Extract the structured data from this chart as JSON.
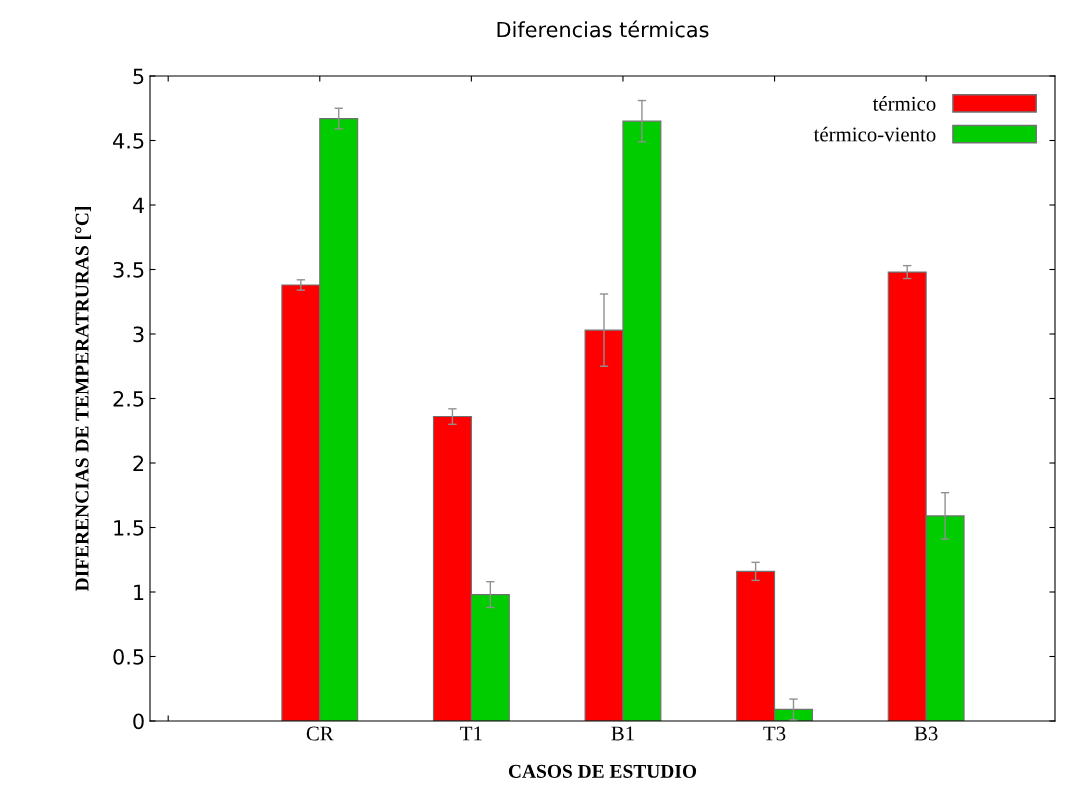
{
  "chart_data": {
    "type": "bar",
    "title": "Diferencias térmicas",
    "xlabel": "CASOS DE ESTUDIO",
    "ylabel": "DIFERENCIAS DE TEMPERATRURAS [°C]",
    "categories": [
      null,
      "CR",
      "T1",
      "B1",
      "T3",
      "B3"
    ],
    "series": [
      {
        "name": "térmico",
        "color": "#ff0000",
        "values": [
          null,
          3.38,
          2.36,
          3.03,
          1.16,
          3.48
        ],
        "errors": [
          null,
          0.04,
          0.06,
          0.28,
          0.07,
          0.05
        ]
      },
      {
        "name": "térmico-viento",
        "color": "#00cc00",
        "values": [
          null,
          4.67,
          0.98,
          4.65,
          0.09,
          1.59
        ],
        "errors": [
          null,
          0.08,
          0.1,
          0.16,
          0.08,
          0.18
        ]
      }
    ],
    "ylim": [
      0,
      5
    ],
    "yticks": [
      0,
      0.5,
      1,
      1.5,
      2,
      2.5,
      3,
      3.5,
      4,
      4.5,
      5
    ],
    "grid": false,
    "legend": "top right"
  }
}
